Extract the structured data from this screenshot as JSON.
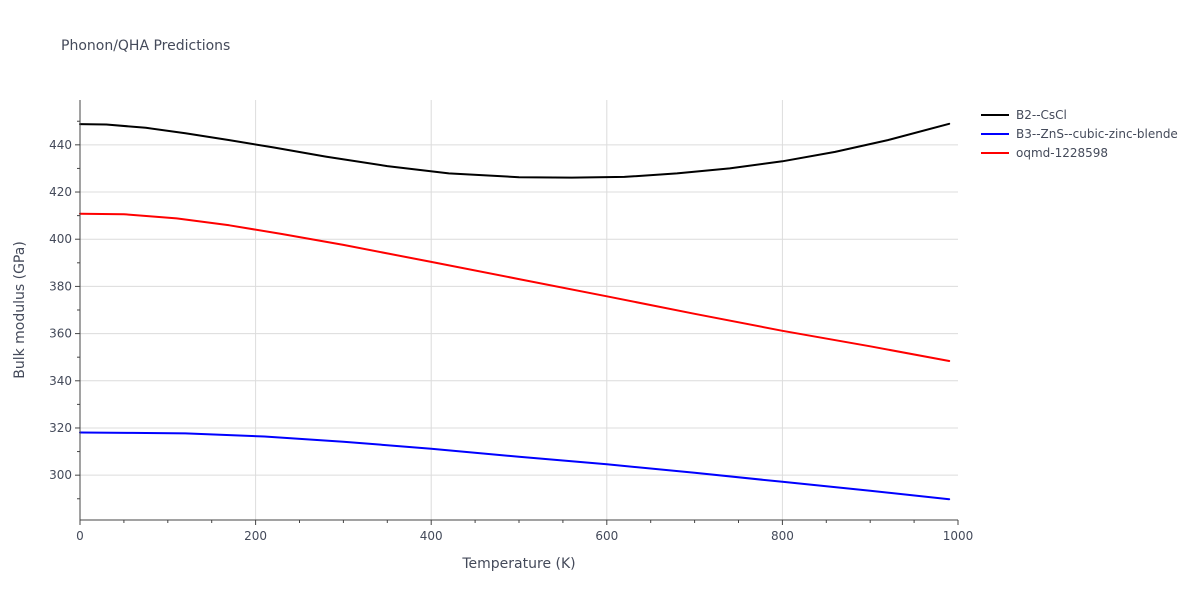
{
  "chart_data": {
    "type": "line",
    "title": "Phonon/QHA Predictions",
    "xlabel": "Temperature (K)",
    "ylabel": "Bulk modulus (GPa)",
    "xlim": [
      0,
      1000
    ],
    "ylim": [
      281,
      459
    ],
    "x_ticks": [
      0,
      200,
      400,
      600,
      800,
      1000
    ],
    "x_tick_labels": [
      "0",
      "200",
      "400",
      "600",
      "800",
      "1000"
    ],
    "y_ticks": [
      300,
      320,
      340,
      360,
      380,
      400,
      420,
      440
    ],
    "y_tick_labels": [
      "300",
      "320",
      "340",
      "360",
      "380",
      "400",
      "420",
      "440"
    ],
    "grid": true,
    "legend_position": "top-right",
    "series": [
      {
        "name": "B2--CsCl",
        "color": "#000000",
        "x": [
          0,
          30,
          75,
          120,
          170,
          220,
          280,
          350,
          420,
          500,
          560,
          620,
          680,
          740,
          800,
          860,
          920,
          990
        ],
        "y": [
          448.8,
          448.6,
          447.2,
          444.9,
          442.0,
          438.9,
          435.0,
          431.0,
          427.9,
          426.3,
          426.1,
          426.4,
          427.9,
          430.0,
          433.0,
          437.0,
          442.0,
          448.9
        ]
      },
      {
        "name": "B3--ZnS--cubic-zinc-blende",
        "color": "#0000ff",
        "x": [
          0,
          60,
          120,
          210,
          300,
          400,
          500,
          600,
          700,
          800,
          900,
          990
        ],
        "y": [
          318.1,
          317.9,
          317.7,
          316.4,
          314.2,
          311.2,
          307.8,
          304.6,
          301.0,
          297.2,
          293.4,
          289.8
        ]
      },
      {
        "name": "oqmd-1228598",
        "color": "#ff0000",
        "x": [
          0,
          50,
          110,
          170,
          230,
          300,
          400,
          500,
          600,
          700,
          800,
          900,
          990
        ],
        "y": [
          410.8,
          410.6,
          408.8,
          405.9,
          402.2,
          397.6,
          390.4,
          383.1,
          375.8,
          368.4,
          361.2,
          354.6,
          348.4
        ]
      }
    ]
  }
}
